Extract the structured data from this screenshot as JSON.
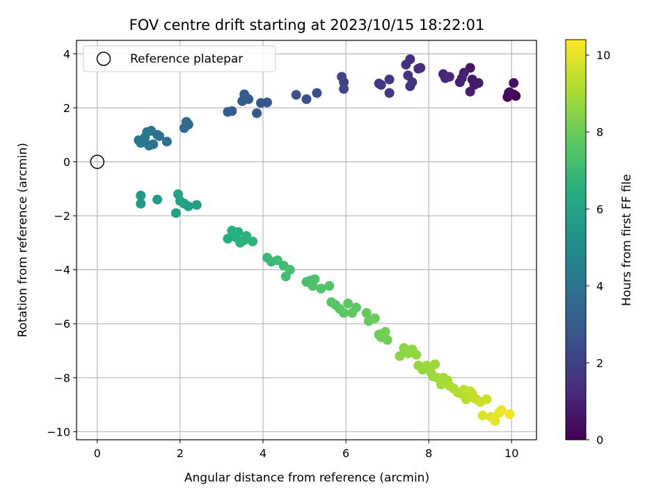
{
  "chart_data": {
    "type": "scatter",
    "title": "FOV centre drift starting at 2023/10/15 18:22:01",
    "xlabel": "Angular distance from reference (arcmin)",
    "ylabel": "Rotation from reference (arcmin)",
    "colorbar_label": "Hours from first FF file",
    "colormap": "viridis",
    "xlim": [
      -0.5,
      10.6
    ],
    "ylim": [
      -10.3,
      4.5
    ],
    "xticks": [
      0,
      2,
      4,
      6,
      8,
      10
    ],
    "yticks": [
      -10,
      -8,
      -6,
      -4,
      -2,
      0,
      2,
      4
    ],
    "colorbar_range": [
      0,
      10.4
    ],
    "colorbar_ticks": [
      0,
      2,
      4,
      6,
      8,
      10
    ],
    "grid": true,
    "legend": {
      "position": "top-left",
      "entries": [
        "Reference platepar"
      ]
    },
    "reference_point": {
      "x": 0,
      "y": 0
    },
    "points": [
      [
        9.9,
        2.4,
        0.2
      ],
      [
        9.95,
        2.58,
        0.3
      ],
      [
        10.05,
        2.5,
        0.2
      ],
      [
        10.1,
        2.44,
        0.1
      ],
      [
        10.05,
        2.92,
        0.4
      ],
      [
        9.93,
        2.55,
        0.3
      ],
      [
        9.0,
        3.48,
        0.6
      ],
      [
        9.05,
        3.05,
        0.7
      ],
      [
        9.1,
        2.85,
        0.7
      ],
      [
        9.2,
        2.92,
        0.8
      ],
      [
        9.0,
        2.6,
        0.8
      ],
      [
        8.85,
        3.3,
        0.9
      ],
      [
        8.8,
        3.1,
        1.0
      ],
      [
        8.75,
        2.95,
        1.0
      ],
      [
        8.4,
        3.1,
        1.1
      ],
      [
        8.35,
        3.25,
        1.1
      ],
      [
        8.5,
        3.15,
        1.2
      ],
      [
        7.75,
        3.45,
        1.3
      ],
      [
        7.8,
        3.48,
        1.3
      ],
      [
        7.55,
        3.8,
        1.4
      ],
      [
        7.45,
        3.6,
        1.4
      ],
      [
        7.5,
        3.2,
        1.5
      ],
      [
        7.55,
        2.8,
        1.5
      ],
      [
        7.6,
        2.95,
        1.5
      ],
      [
        7.05,
        3.05,
        1.6
      ],
      [
        7.05,
        2.55,
        1.6
      ],
      [
        6.85,
        2.85,
        1.7
      ],
      [
        6.8,
        2.9,
        1.7
      ],
      [
        5.9,
        3.15,
        2.1
      ],
      [
        5.95,
        2.95,
        2.1
      ],
      [
        5.95,
        2.7,
        2.2
      ],
      [
        5.3,
        2.55,
        2.5
      ],
      [
        5.05,
        2.32,
        2.5
      ],
      [
        4.8,
        2.48,
        2.6
      ],
      [
        4.1,
        2.2,
        2.8
      ],
      [
        3.95,
        2.18,
        2.8
      ],
      [
        3.85,
        1.8,
        2.9
      ],
      [
        3.65,
        2.32,
        2.9
      ],
      [
        3.55,
        2.5,
        3.0
      ],
      [
        3.5,
        2.25,
        3.0
      ],
      [
        3.25,
        1.88,
        3.1
      ],
      [
        3.15,
        1.85,
        3.1
      ],
      [
        2.2,
        1.38,
        3.5
      ],
      [
        2.15,
        1.48,
        3.6
      ],
      [
        2.1,
        1.25,
        3.6
      ],
      [
        1.68,
        0.75,
        3.8
      ],
      [
        1.5,
        0.95,
        3.8
      ],
      [
        1.45,
        1.0,
        3.9
      ],
      [
        1.35,
        0.65,
        3.9
      ],
      [
        1.3,
        1.15,
        4.0
      ],
      [
        1.25,
        0.6,
        4.0
      ],
      [
        1.2,
        1.1,
        4.1
      ],
      [
        1.15,
        0.9,
        4.1
      ],
      [
        1.05,
        0.7,
        4.2
      ],
      [
        1.0,
        0.8,
        4.2
      ],
      [
        1.05,
        -1.25,
        5.5
      ],
      [
        1.05,
        -1.55,
        5.5
      ],
      [
        1.45,
        -1.4,
        5.6
      ],
      [
        2.4,
        -1.6,
        5.7
      ],
      [
        2.2,
        -1.65,
        5.8
      ],
      [
        2.1,
        -1.55,
        5.8
      ],
      [
        2.0,
        -1.45,
        5.9
      ],
      [
        1.95,
        -1.2,
        5.9
      ],
      [
        1.9,
        -1.9,
        5.9
      ],
      [
        3.15,
        -2.85,
        6.4
      ],
      [
        3.25,
        -2.55,
        6.4
      ],
      [
        3.3,
        -2.65,
        6.5
      ],
      [
        3.35,
        -2.8,
        6.5
      ],
      [
        3.4,
        -2.6,
        6.5
      ],
      [
        3.45,
        -3.0,
        6.6
      ],
      [
        3.55,
        -2.9,
        6.6
      ],
      [
        3.6,
        -2.75,
        6.6
      ],
      [
        3.75,
        -2.95,
        6.7
      ],
      [
        4.1,
        -3.55,
        7.0
      ],
      [
        4.2,
        -3.7,
        7.0
      ],
      [
        4.35,
        -3.65,
        7.1
      ],
      [
        4.5,
        -3.85,
        7.1
      ],
      [
        4.65,
        -4.0,
        7.2
      ],
      [
        4.55,
        -4.25,
        7.2
      ],
      [
        5.05,
        -4.45,
        7.3
      ],
      [
        5.15,
        -4.4,
        7.3
      ],
      [
        5.2,
        -4.6,
        7.4
      ],
      [
        5.25,
        -4.35,
        7.4
      ],
      [
        5.4,
        -4.7,
        7.5
      ],
      [
        5.6,
        -4.6,
        7.5
      ],
      [
        5.65,
        -5.2,
        7.6
      ],
      [
        5.75,
        -5.3,
        7.6
      ],
      [
        5.85,
        -5.45,
        7.7
      ],
      [
        5.95,
        -5.6,
        7.7
      ],
      [
        6.05,
        -5.25,
        7.7
      ],
      [
        6.15,
        -5.6,
        7.8
      ],
      [
        6.25,
        -5.4,
        7.8
      ],
      [
        6.5,
        -5.6,
        7.9
      ],
      [
        6.55,
        -5.9,
        7.9
      ],
      [
        6.7,
        -5.8,
        8.0
      ],
      [
        6.8,
        -6.4,
        8.0
      ],
      [
        6.85,
        -6.5,
        8.1
      ],
      [
        6.95,
        -6.3,
        8.1
      ],
      [
        7.0,
        -6.6,
        8.1
      ],
      [
        7.3,
        -7.2,
        8.5
      ],
      [
        7.4,
        -6.9,
        8.5
      ],
      [
        7.5,
        -7.1,
        8.6
      ],
      [
        7.6,
        -6.95,
        8.6
      ],
      [
        7.7,
        -7.15,
        8.6
      ],
      [
        7.75,
        -7.55,
        8.7
      ],
      [
        7.85,
        -7.7,
        8.7
      ],
      [
        7.95,
        -7.55,
        8.8
      ],
      [
        8.05,
        -7.8,
        8.8
      ],
      [
        8.1,
        -7.95,
        8.8
      ],
      [
        8.15,
        -7.5,
        8.8
      ],
      [
        8.2,
        -8.0,
        8.9
      ],
      [
        8.3,
        -8.25,
        8.9
      ],
      [
        8.35,
        -8.0,
        9.0
      ],
      [
        8.4,
        -8.2,
        9.0
      ],
      [
        8.45,
        -8.1,
        9.0
      ],
      [
        8.5,
        -8.3,
        9.1
      ],
      [
        8.6,
        -8.4,
        9.1
      ],
      [
        8.7,
        -8.55,
        9.2
      ],
      [
        8.8,
        -8.6,
        9.2
      ],
      [
        8.85,
        -8.45,
        9.3
      ],
      [
        8.9,
        -8.8,
        9.3
      ],
      [
        8.95,
        -8.7,
        9.3
      ],
      [
        9.0,
        -8.5,
        9.4
      ],
      [
        9.05,
        -8.6,
        9.4
      ],
      [
        9.1,
        -8.75,
        9.5
      ],
      [
        9.15,
        -8.8,
        9.5
      ],
      [
        9.25,
        -8.9,
        9.6
      ],
      [
        9.4,
        -8.8,
        9.6
      ],
      [
        9.3,
        -9.4,
        9.8
      ],
      [
        9.5,
        -9.45,
        9.9
      ],
      [
        9.6,
        -9.6,
        10.0
      ],
      [
        9.7,
        -9.3,
        10.0
      ],
      [
        9.75,
        -9.2,
        10.1
      ],
      [
        9.95,
        -9.35,
        10.2
      ]
    ]
  }
}
